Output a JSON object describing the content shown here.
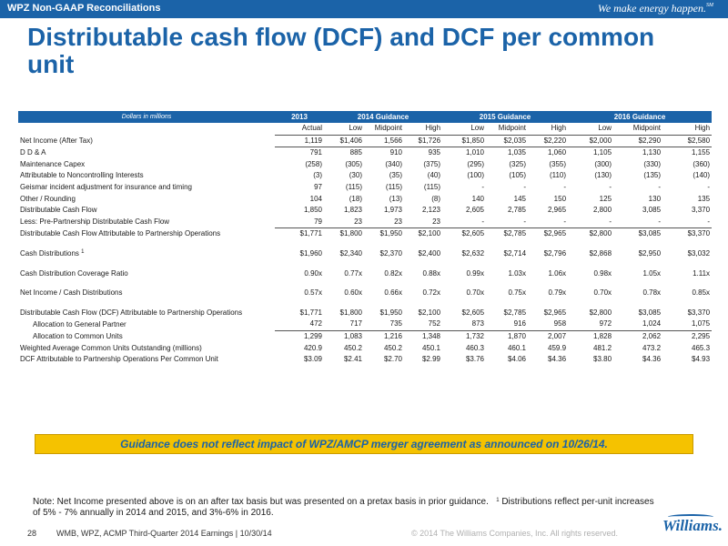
{
  "header": {
    "section": "WPZ Non-GAAP Reconciliations",
    "tagline": "We make energy happen.",
    "tagline_mark": "SM"
  },
  "title": "Distributable cash flow (DCF) and DCF per common unit",
  "table": {
    "dollars_label": "Dollars in millions",
    "group_headers": [
      "2013",
      "2014 Guidance",
      "2015 Guidance",
      "2016 Guidance"
    ],
    "sub_headers": [
      "Actual",
      "Low",
      "Midpoint",
      "High",
      "Low",
      "Midpoint",
      "High",
      "Low",
      "Midpoint",
      "High"
    ],
    "rows": [
      {
        "label": "Net Income (After Tax)",
        "values": [
          "1,119",
          "$1,406",
          "1,566",
          "$1,726",
          "$1,850",
          "$2,035",
          "$2,220",
          "$2,000",
          "$2,290",
          "$2,580"
        ]
      },
      {
        "label": "D D & A",
        "values": [
          "791",
          "885",
          "910",
          "935",
          "1,010",
          "1,035",
          "1,060",
          "1,105",
          "1,130",
          "1,155"
        ]
      },
      {
        "label": "Maintenance Capex",
        "values": [
          "(258)",
          "(305)",
          "(340)",
          "(375)",
          "(295)",
          "(325)",
          "(355)",
          "(300)",
          "(330)",
          "(360)"
        ]
      },
      {
        "label": "Attributable to Noncontrolling Interests",
        "values": [
          "(3)",
          "(30)",
          "(35)",
          "(40)",
          "(100)",
          "(105)",
          "(110)",
          "(130)",
          "(135)",
          "(140)"
        ]
      },
      {
        "label": "Geismar incident adjustment for insurance and timing",
        "values": [
          "97",
          "(115)",
          "(115)",
          "(115)",
          "-",
          "-",
          "-",
          "-",
          "-",
          "-"
        ]
      },
      {
        "label": "Other / Rounding",
        "values": [
          "104",
          "(18)",
          "(13)",
          "(8)",
          "140",
          "145",
          "150",
          "125",
          "130",
          "135"
        ]
      },
      {
        "label": "Distributable Cash Flow",
        "values": [
          "1,850",
          "1,823",
          "1,973",
          "2,123",
          "2,605",
          "2,785",
          "2,965",
          "2,800",
          "3,085",
          "3,370"
        ]
      },
      {
        "label": "Less: Pre-Partnership Distributable Cash Flow",
        "values": [
          "79",
          "23",
          "23",
          "23",
          "-",
          "-",
          "-",
          "-",
          "-",
          "-"
        ]
      },
      {
        "label": "Distributable Cash Flow Attributable to Partnership Operations",
        "values": [
          "$1,771",
          "$1,800",
          "$1,950",
          "$2,100",
          "$2,605",
          "$2,785",
          "$2,965",
          "$2,800",
          "$3,085",
          "$3,370"
        ]
      },
      {
        "label": "Cash Distributions",
        "footnote": "1",
        "values": [
          "$1,960",
          "$2,340",
          "$2,370",
          "$2,400",
          "$2,632",
          "$2,714",
          "$2,796",
          "$2,868",
          "$2,950",
          "$3,032"
        ]
      },
      {
        "label": "Cash Distribution Coverage Ratio",
        "values": [
          "0.90x",
          "0.77x",
          "0.82x",
          "0.88x",
          "0.99x",
          "1.03x",
          "1.06x",
          "0.98x",
          "1.05x",
          "1.11x"
        ]
      },
      {
        "label": "Net Income / Cash Distributions",
        "values": [
          "0.57x",
          "0.60x",
          "0.66x",
          "0.72x",
          "0.70x",
          "0.75x",
          "0.79x",
          "0.70x",
          "0.78x",
          "0.85x"
        ]
      },
      {
        "label": "Distributable Cash Flow (DCF) Attributable to Partnership Operations",
        "values": [
          "$1,771",
          "$1,800",
          "$1,950",
          "$2,100",
          "$2,605",
          "$2,785",
          "$2,965",
          "$2,800",
          "$3,085",
          "$3,370"
        ]
      },
      {
        "label": "Allocation to General Partner",
        "values": [
          "472",
          "717",
          "735",
          "752",
          "873",
          "916",
          "958",
          "972",
          "1,024",
          "1,075"
        ]
      },
      {
        "label": "Allocation to Common Units",
        "values": [
          "1,299",
          "1,083",
          "1,216",
          "1,348",
          "1,732",
          "1,870",
          "2,007",
          "1,828",
          "2,062",
          "2,295"
        ]
      },
      {
        "label": "Weighted Average Common Units Outstanding (millions)",
        "values": [
          "420.9",
          "450.2",
          "450.2",
          "450.1",
          "460.3",
          "460.1",
          "459.9",
          "481.2",
          "473.2",
          "465.3"
        ]
      },
      {
        "label": "DCF Attributable to Partnership Operations Per Common Unit",
        "values": [
          "$3.09",
          "$2.41",
          "$2.70",
          "$2.99",
          "$3.76",
          "$4.06",
          "$4.36",
          "$3.80",
          "$4.36",
          "$4.93"
        ]
      }
    ]
  },
  "banner": "Guidance does not reflect impact of WPZ/AMCP merger agreement as announced on 10/26/14.",
  "note": {
    "text": "Note:  Net Income presented above is on an after tax basis but was presented on a pretax basis in prior guidance.",
    "footnote_mark": "1",
    "footnote_text": "Distributions reflect per-unit increases of 5% - 7% annually in 2014 and 2015, and 3%-6% in 2016."
  },
  "footer": {
    "page": "28",
    "deck": "WMB, WPZ, ACMP Third-Quarter 2014 Earnings  |  10/30/14",
    "copyright": "© 2014 The Williams Companies, Inc. All rights reserved.",
    "logo": "Williams."
  },
  "colors": {
    "brand_blue": "#1b63a8",
    "banner_yellow": "#f5c200"
  }
}
